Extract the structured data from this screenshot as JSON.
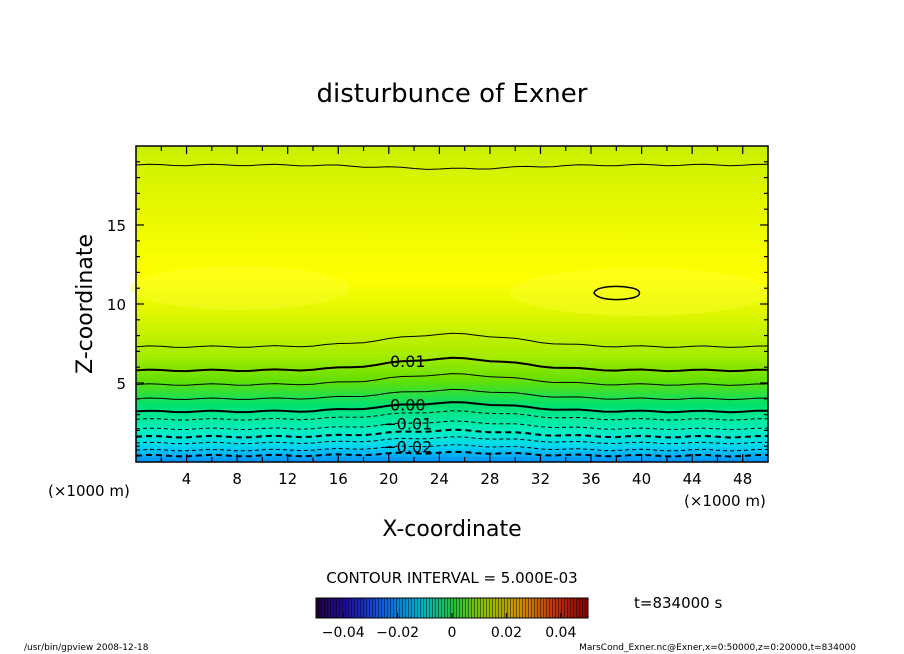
{
  "chart_data": {
    "type": "contour",
    "title": "disturbunce of Exner",
    "xlabel": "X-coordinate",
    "ylabel": "Z-coordinate",
    "x_unit_note": "(×1000 m)",
    "y_unit_note": "(×1000 m)",
    "xlim": [
      0,
      50
    ],
    "ylim": [
      0,
      20
    ],
    "x_ticks": [
      "4",
      "8",
      "12",
      "16",
      "20",
      "24",
      "28",
      "32",
      "36",
      "40",
      "44",
      "48"
    ],
    "y_ticks": [
      "5",
      "10",
      "15"
    ],
    "contour_labels": [
      "0.01",
      "0.00",
      "−0.01",
      "−0.02"
    ],
    "contour_interval_text": "CONTOUR INTERVAL = 5.000E-03",
    "colorbar_ticks": [
      "−0.04",
      "−0.02",
      "0",
      "0.02",
      "0.04"
    ],
    "colorbar_range": [
      -0.05,
      0.05
    ],
    "time_label": "t=834000 s",
    "footer_left": "/usr/bin/gpview   2008-12-18",
    "footer_right": "MarsCond_Exner.nc@Exner,x=0:50000,z=0:20000,t=834000",
    "colors": {
      "top": "#c8f000",
      "mid_max": "#ffff00",
      "zero": "#66e000",
      "low": "#00f0c0",
      "bottom": "#0090ff"
    }
  }
}
